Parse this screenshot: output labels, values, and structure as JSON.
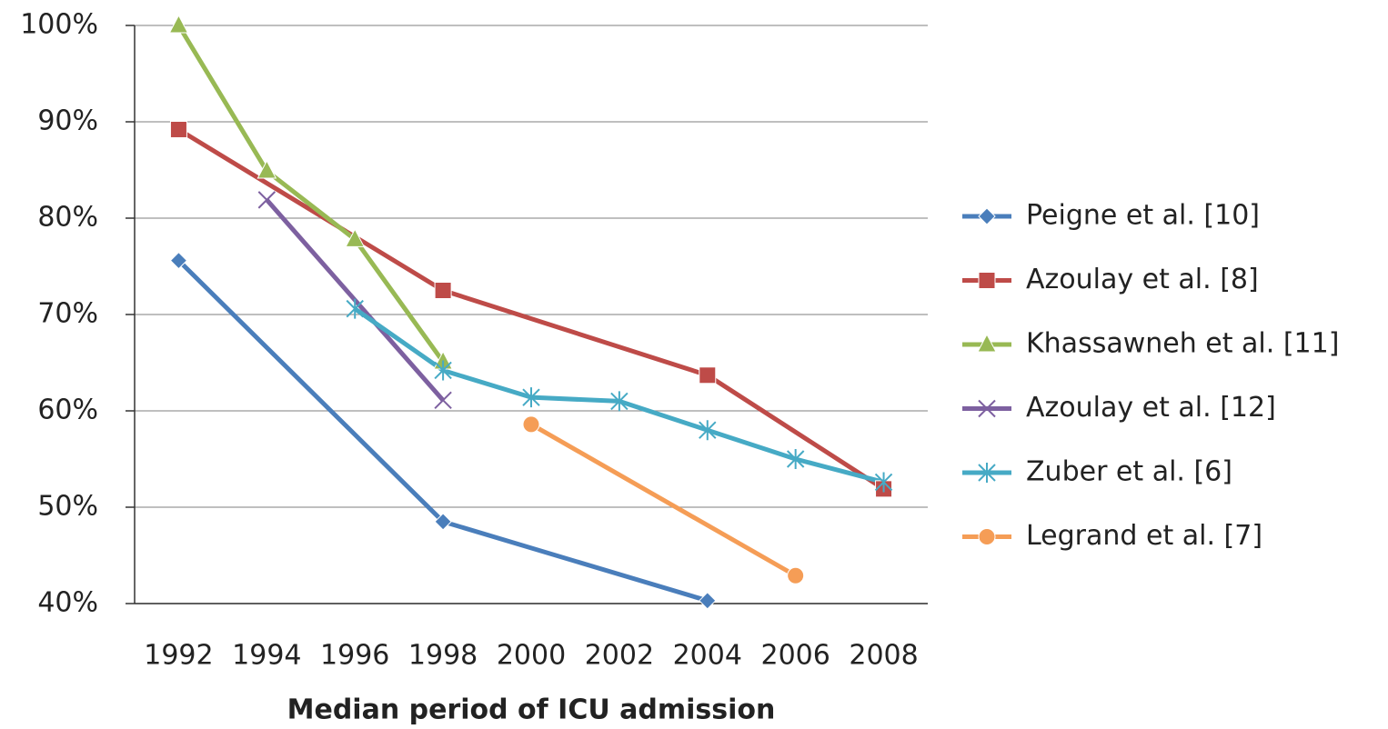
{
  "chart_data": {
    "type": "line",
    "x_label": "Median period of ICU admission",
    "xlim": [
      1991,
      2009
    ],
    "xticks": [
      1992,
      1994,
      1996,
      1998,
      2000,
      2002,
      2004,
      2006,
      2008
    ],
    "ylim": [
      40,
      100
    ],
    "yticks": [
      {
        "value": 40,
        "label": "40%"
      },
      {
        "value": 50,
        "label": "50%"
      },
      {
        "value": 60,
        "label": "60%"
      },
      {
        "value": 70,
        "label": "70%"
      },
      {
        "value": 80,
        "label": "80%"
      },
      {
        "value": 90,
        "label": "90%"
      },
      {
        "value": 100,
        "label": "100%"
      }
    ],
    "grid": true,
    "legend": "right",
    "series": [
      {
        "name": "Peigne et al. [10]",
        "color": "#4a7ebb",
        "marker": "diamond",
        "x": [
          1992,
          1998,
          2004
        ],
        "values": [
          75.6,
          48.5,
          40.3
        ]
      },
      {
        "name": "Azoulay et al. [8]",
        "color": "#be4b48",
        "marker": "square",
        "x": [
          1992,
          1998,
          2004,
          2008
        ],
        "values": [
          89.2,
          72.5,
          63.7,
          51.9
        ]
      },
      {
        "name": "Khassawneh et al. [11]",
        "color": "#98b954",
        "marker": "triangle",
        "x": [
          1992,
          1994,
          1996,
          1998
        ],
        "values": [
          100,
          84.9,
          77.8,
          65.1
        ]
      },
      {
        "name": "Azoulay et al. [12]",
        "color": "#7d60a0",
        "marker": "x",
        "x": [
          1994,
          1998
        ],
        "values": [
          81.9,
          61.1
        ]
      },
      {
        "name": "Zuber et al. [6]",
        "color": "#46aac5",
        "marker": "star",
        "x": [
          1996,
          1998,
          2000,
          2002,
          2004,
          2006,
          2008
        ],
        "values": [
          70.6,
          64.2,
          61.4,
          61.0,
          58.0,
          55.0,
          52.6
        ]
      },
      {
        "name": "Legrand et al. [7]",
        "color": "#f59d56",
        "marker": "circle",
        "x": [
          2000,
          2006
        ],
        "values": [
          58.6,
          42.9
        ]
      }
    ]
  }
}
